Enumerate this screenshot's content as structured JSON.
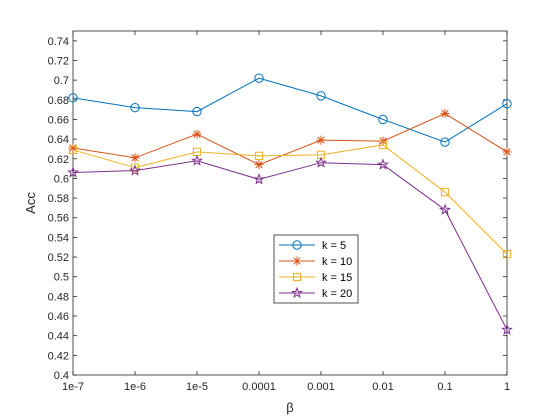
{
  "chart_data": {
    "type": "line",
    "xlabel": "β",
    "ylabel": "Acc",
    "categories": [
      "1e-7",
      "1e-6",
      "1e-5",
      "0.0001",
      "0.001",
      "0.01",
      "0.1",
      "1"
    ],
    "ylim": [
      0.4,
      0.75
    ],
    "yticks": [
      "0.4",
      "0.42",
      "0.44",
      "0.46",
      "0.48",
      "0.5",
      "0.52",
      "0.54",
      "0.56",
      "0.58",
      "0.6",
      "0.62",
      "0.64",
      "0.66",
      "0.68",
      "0.7",
      "0.72",
      "0.74"
    ],
    "grid": false,
    "legend_position": "center-bottom",
    "series": [
      {
        "name": "k = 5",
        "color": "#0072BD",
        "marker": "circle",
        "values": [
          0.682,
          0.672,
          0.668,
          0.702,
          0.684,
          0.66,
          0.637,
          0.676
        ]
      },
      {
        "name": "k = 10",
        "color": "#D95319",
        "marker": "asterisk",
        "values": [
          0.631,
          0.621,
          0.645,
          0.614,
          0.639,
          0.638,
          0.666,
          0.627
        ]
      },
      {
        "name": "k = 15",
        "color": "#EDB120",
        "marker": "square",
        "values": [
          0.629,
          0.611,
          0.627,
          0.623,
          0.624,
          0.634,
          0.586,
          0.523
        ]
      },
      {
        "name": "k = 20",
        "color": "#7E2F8E",
        "marker": "star",
        "values": [
          0.606,
          0.608,
          0.618,
          0.599,
          0.616,
          0.614,
          0.568,
          0.446
        ]
      }
    ]
  }
}
